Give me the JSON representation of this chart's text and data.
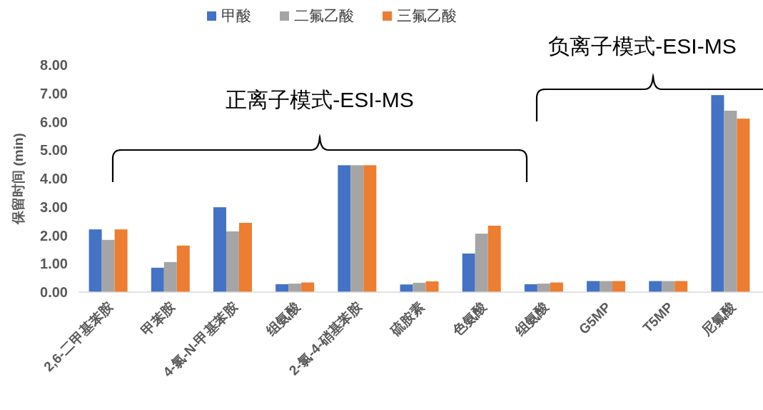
{
  "chart_data": {
    "type": "bar",
    "ylabel": "保留时间 (min)",
    "categories": [
      "2,6-二甲基苯胺",
      "甲苯胺",
      "4-氯-N-甲基苯胺",
      "组氨酸",
      "2-氯-4-硝基苯胺",
      "硫胺素",
      "色氨酸",
      "组氨酸",
      "G5MP",
      "T5MP",
      "尼氟酸"
    ],
    "series": [
      {
        "name": "甲酸",
        "color": "#4472c4",
        "values": [
          2.21,
          0.86,
          2.99,
          0.28,
          4.47,
          0.27,
          1.36,
          0.28,
          0.39,
          0.39,
          6.94
        ]
      },
      {
        "name": "二氟乙酸",
        "color": "#a5a5a5",
        "values": [
          1.84,
          1.06,
          2.14,
          0.3,
          4.47,
          0.33,
          2.06,
          0.3,
          0.39,
          0.39,
          6.39
        ]
      },
      {
        "name": "三氟乙酸",
        "color": "#ed7d31",
        "values": [
          2.21,
          1.64,
          2.44,
          0.34,
          4.47,
          0.38,
          2.34,
          0.34,
          0.39,
          0.39,
          6.11
        ]
      }
    ],
    "ylim": [
      0,
      8
    ],
    "yticks": [
      {
        "value": 0,
        "label": "0.00"
      },
      {
        "value": 1,
        "label": "1.00"
      },
      {
        "value": 2,
        "label": "2.00"
      },
      {
        "value": 3,
        "label": "3.00"
      },
      {
        "value": 4,
        "label": "4.00"
      },
      {
        "value": 5,
        "label": "5.00"
      },
      {
        "value": 6,
        "label": "6.00"
      },
      {
        "value": 7,
        "label": "7.00"
      },
      {
        "value": 8,
        "label": "8.00"
      }
    ],
    "legend": "top",
    "annotations": [
      "正离子模式-ESI-MS",
      "负离子模式-ESI-MS"
    ]
  }
}
